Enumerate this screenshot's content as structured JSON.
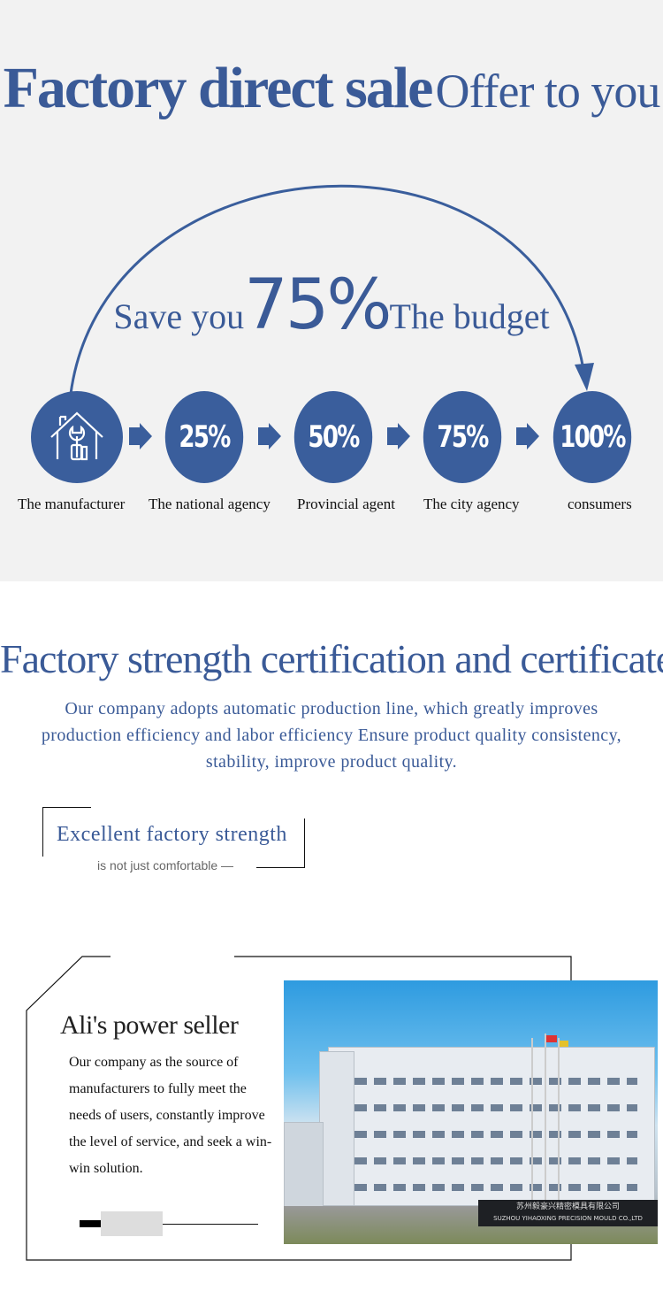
{
  "hero": {
    "title_bold": "Factory direct sale",
    "title_light": "Offer to you",
    "save_prefix": "Save you",
    "save_percent": "75%",
    "save_suffix": "The budget"
  },
  "chain": [
    {
      "value": "",
      "icon": "house-wrench-icon",
      "label": "The manufacturer"
    },
    {
      "value": "25%",
      "label": "The national agency"
    },
    {
      "value": "50%",
      "label": "Provincial agent"
    },
    {
      "value": "75%",
      "label": "The city agency"
    },
    {
      "value": "100%",
      "label": "consumers"
    }
  ],
  "cert": {
    "title": "Factory strength certification and certificates",
    "description": "Our company adopts automatic production line, which greatly improves production efficiency and labor efficiency Ensure product quality consistency, stability, improve product quality."
  },
  "strength": {
    "title": "Excellent factory strength",
    "subtitle": "is not just comfortable —"
  },
  "seller": {
    "title": "Ali's power seller",
    "text": "Our company as the source of manufacturers to fully meet the needs of users, constantly improve the level of service, and seek a win-win solution.",
    "sign_cn": "苏州毅豪兴精密模具有限公司",
    "sign_en": "SUZHOU YIHAOXING PRECISION MOULD CO.,LTD"
  },
  "colors": {
    "brand_blue": "#3a5e9c",
    "background_gray": "#f2f2f2"
  }
}
